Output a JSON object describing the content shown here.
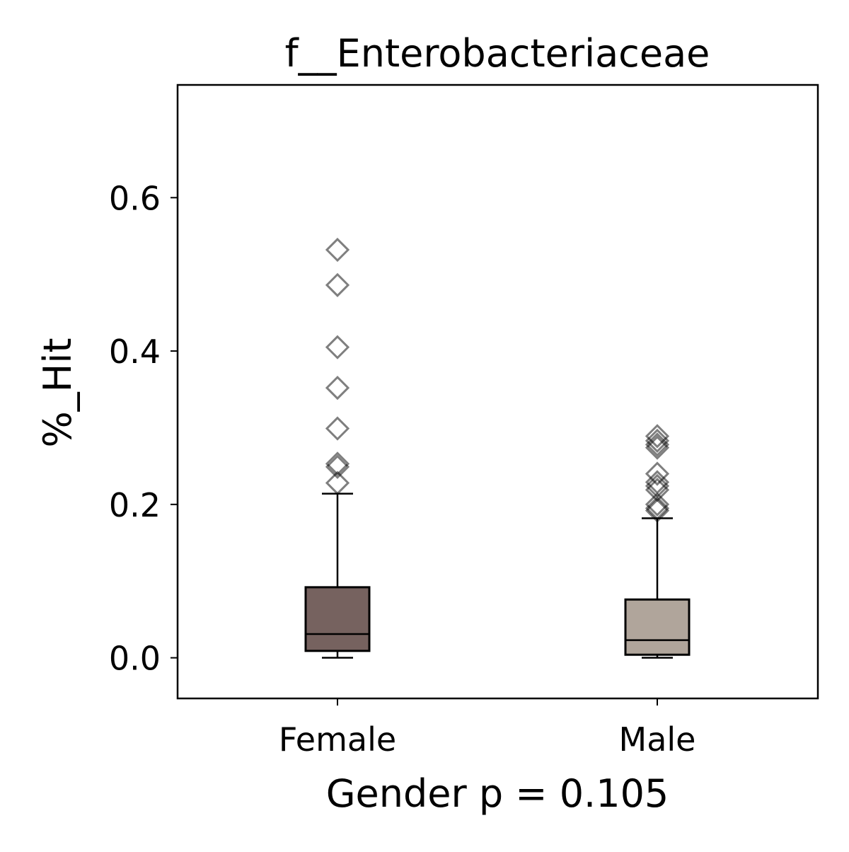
{
  "chart_data": {
    "type": "box",
    "title": "f__Enterobacteriaceae",
    "xlabel": "Gender p = 0.105",
    "ylabel": "%_Hit",
    "ylim": [
      -0.053,
      0.747
    ],
    "yticks": [
      0.0,
      0.2,
      0.4,
      0.6
    ],
    "ytick_labels": [
      "0.0",
      "0.2",
      "0.4",
      "0.6"
    ],
    "categories": [
      "Female",
      "Male"
    ],
    "boxes": [
      {
        "name": "Female",
        "color": "#76625f",
        "whisker_low": 0.0,
        "q1": 0.009,
        "median": 0.031,
        "q3": 0.092,
        "whisker_high": 0.214,
        "outliers": [
          0.532,
          0.486,
          0.405,
          0.352,
          0.299,
          0.253,
          0.249,
          0.228
        ]
      },
      {
        "name": "Male",
        "color": "#b0a59b",
        "whisker_low": 0.0,
        "q1": 0.004,
        "median": 0.023,
        "q3": 0.076,
        "whisker_high": 0.182,
        "outliers": [
          0.289,
          0.283,
          0.278,
          0.274,
          0.24,
          0.229,
          0.224,
          0.219,
          0.2,
          0.195,
          0.192
        ]
      }
    ],
    "grid": false
  }
}
